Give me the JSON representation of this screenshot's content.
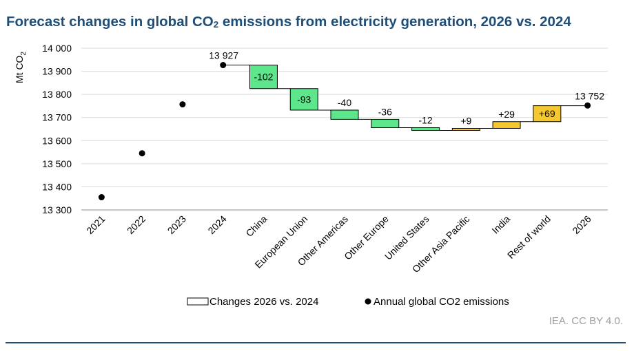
{
  "page": {
    "title_pre": "Forecast changes in global CO",
    "title_sub": "2",
    "title_post": " emissions from electricity generation, 2026 vs. 2024",
    "credit": "IEA. CC BY 4.0."
  },
  "chart_data": {
    "type": "waterfall",
    "title": "Forecast changes in global CO2 emissions from electricity generation, 2026 vs. 2024",
    "ylabel": "Mt CO2",
    "ylabel_pre": "Mt CO",
    "ylabel_sub": "2",
    "ylim": [
      13300,
      14000
    ],
    "ytick_values": [
      13300,
      13400,
      13500,
      13600,
      13700,
      13800,
      13900,
      14000
    ],
    "ytick_labels": [
      "13 300",
      "13 400",
      "13 500",
      "13 600",
      "13 700",
      "13 800",
      "13 900",
      "14 000"
    ],
    "grid": true,
    "categories": [
      "2021",
      "2022",
      "2023",
      "2024",
      "China",
      "European Union",
      "Other Americas",
      "Other Europe",
      "United States",
      "Other Asia Pacific",
      "India",
      "Rest of world",
      "2026"
    ],
    "annual_points": [
      {
        "category": "2021",
        "value": 13355
      },
      {
        "category": "2022",
        "value": 13545
      },
      {
        "category": "2023",
        "value": 13757
      },
      {
        "category": "2024",
        "value": 13927,
        "label": "13 927"
      },
      {
        "category": "2026",
        "value": 13752,
        "label": "13 752"
      }
    ],
    "changes": [
      {
        "category": "China",
        "value": -102,
        "label": "-102",
        "color": "#5ee68c"
      },
      {
        "category": "European Union",
        "value": -93,
        "label": "-93",
        "color": "#5ee68c"
      },
      {
        "category": "Other Americas",
        "value": -40,
        "label": "-40",
        "color": "#5ee68c"
      },
      {
        "category": "Other Europe",
        "value": -36,
        "label": "-36",
        "color": "#5ee68c"
      },
      {
        "category": "United States",
        "value": -12,
        "label": "-12",
        "color": "#5ee68c"
      },
      {
        "category": "Other Asia Pacific",
        "value": 9,
        "label": "+9",
        "color": "#f5c830"
      },
      {
        "category": "India",
        "value": 29,
        "label": "+29",
        "color": "#f5c830"
      },
      {
        "category": "Rest of world",
        "value": 69,
        "label": "+69",
        "color": "#f5c830"
      }
    ],
    "legend": [
      {
        "kind": "box",
        "label": "Changes 2026 vs. 2024"
      },
      {
        "kind": "dot",
        "label": "Annual global CO2 emissions"
      }
    ],
    "legend_position": "bottom"
  }
}
